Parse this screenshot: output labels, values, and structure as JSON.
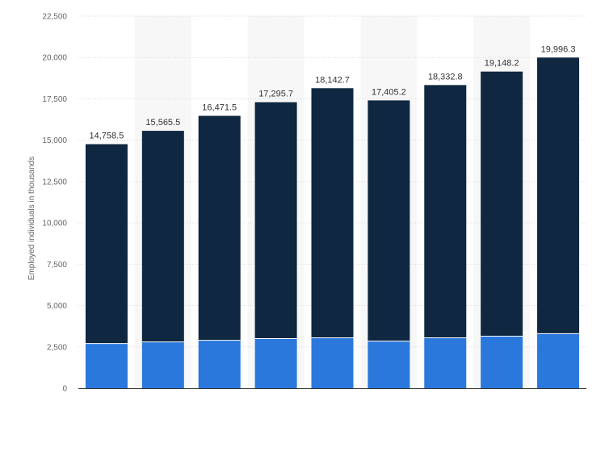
{
  "chart_data": {
    "type": "bar",
    "stacked": true,
    "ylabel": "Employed individuals in thousands",
    "ylim": [
      0,
      22500
    ],
    "yticks": [
      0,
      2500,
      5000,
      7500,
      10000,
      12500,
      15000,
      17500,
      20000,
      22500
    ],
    "ytick_labels": [
      "0",
      "2,500",
      "5,000",
      "7,500",
      "10,000",
      "12,500",
      "15,000",
      "17,500",
      "20,000",
      "22,500"
    ],
    "categories": [
      "",
      "",
      "",
      "",
      "",
      "",
      "",
      "",
      ""
    ],
    "series": [
      {
        "values": [
          2700,
          2800,
          2900,
          3000,
          3050,
          2850,
          3050,
          3150,
          3300
        ],
        "color": "#2a78dc"
      },
      {
        "values": [
          12058.5,
          12765.5,
          13571.5,
          14295.7,
          15092.7,
          14555.2,
          15282.8,
          15998.2,
          16696.3
        ],
        "color": "#0f2740"
      }
    ],
    "totals": [
      14758.5,
      15565.5,
      16471.5,
      17295.7,
      18142.7,
      17405.2,
      18332.8,
      19148.2,
      19996.3
    ],
    "total_labels": [
      "14,758.5",
      "15,565.5",
      "16,471.5",
      "17,295.7",
      "18,142.7",
      "17,405.2",
      "18,332.8",
      "19,148.2",
      "19,996.3"
    ],
    "grid": true,
    "legend": "none"
  }
}
